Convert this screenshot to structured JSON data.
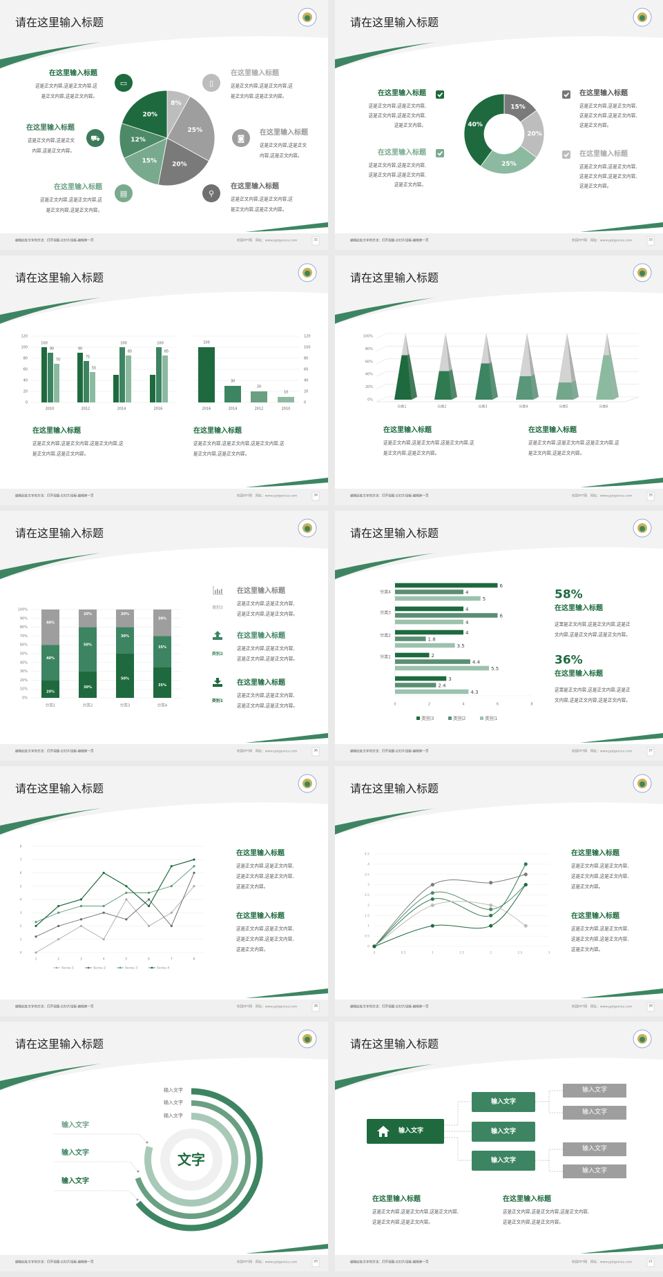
{
  "common": {
    "slide_title": "请在这里输入标题",
    "footer_left": "编辑此处文字的方法：打开视图-幻灯片母版-编辑第一页",
    "footer_site": "校园PPT网",
    "footer_url": "网址：www.pptgenius.com",
    "heading": "在这里输入标题"
  },
  "colors": {
    "dark_green": "#1e6a3e",
    "green": "#3d8562",
    "light_green": "#8cbaa1",
    "gray": "#9e9e9e",
    "light_gray": "#bdbdbd",
    "dark_gray": "#707070"
  },
  "slides": [
    {
      "page": "32",
      "items": [
        {
          "heading": "在这里输入标题",
          "icon": "monitor-icon",
          "body": [
            "这是正文内容,这是正文内容,这",
            "是正文内容,这是正文内容。"
          ]
        },
        {
          "heading": "在这里输入标题",
          "icon": "car-icon",
          "body": [
            "这是正文内容,这是正文",
            "内容,这是正文内容。"
          ]
        },
        {
          "heading": "在这里输入标题",
          "icon": "book-icon",
          "body": [
            "这是正文内容,这是正文内容,这",
            "是正文内容,这是正文内容。"
          ]
        },
        {
          "heading": "在这里输入标题",
          "icon": "phone-icon",
          "body": [
            "这是正文内容,这是正文内容,这",
            "是正文内容,这是正文内容。"
          ]
        },
        {
          "heading": "在这里输入标题",
          "icon": "binoculars-icon",
          "body": [
            "这是正文内容,这是正文",
            "内容,这是正文内容。"
          ]
        },
        {
          "heading": "在这里输入标题",
          "icon": "bicycle-icon",
          "body": [
            "这是正文内容,这是正文内容,这",
            "是正文内容,这是正文内容。"
          ]
        }
      ]
    },
    {
      "page": "33",
      "items": [
        {
          "heading": "在这里输入标题",
          "icon": "checkbox-icon",
          "body": [
            "这是正文内容,这是正文内容,",
            "这是正文内容,这是正文内容,",
            "这是正文内容。"
          ]
        },
        {
          "heading": "在这里输入标题",
          "icon": "checkbox-icon",
          "body": [
            "这是正文内容,这是正文内容,",
            "这是正文内容,这是正文内容,",
            "这是正文内容。"
          ]
        },
        {
          "heading": "在这里输入标题",
          "icon": "checkbox-icon",
          "body": [
            "这是正文内容,这是正文内容,",
            "这是正文内容,这是正文内容,",
            "这是正文内容。"
          ]
        },
        {
          "heading": "在这里输入标题",
          "icon": "checkbox-icon",
          "body": [
            "这是正文内容,这是正文内容,",
            "这是正文内容,这是正文内容,",
            "这是正文内容。"
          ]
        }
      ]
    },
    {
      "page": "34",
      "items": [
        {
          "heading": "在这里输入标题",
          "body": [
            "这是正文内容,这是正文内容,这是正文内容,这",
            "是正文内容,这是正文内容。"
          ]
        },
        {
          "heading": "在这里输入标题",
          "body": [
            "这是正文内容,这是正文内容,这是正文内容,这",
            "是正文内容,这是正文内容。"
          ]
        }
      ]
    },
    {
      "page": "35",
      "items": [
        {
          "heading": "在这里输入标题",
          "body": [
            "这是正文内容,这是正文内容,这是正文内容,这",
            "是正文内容,这是正文内容。"
          ]
        },
        {
          "heading": "在这里输入标题",
          "body": [
            "这是正文内容,这是正文内容,这是正文内容,这",
            "是正文内容,这是正文内容。"
          ]
        }
      ]
    },
    {
      "page": "36",
      "items": [
        {
          "heading": "在这里输入标题",
          "label": "类别3",
          "icon": "bar-chart-icon",
          "body": [
            "这是正文内容,这是正文内容,",
            "这是正文内容,这是正文内容。"
          ]
        },
        {
          "heading": "在这里输入标题",
          "label": "类别2",
          "icon": "upload-icon",
          "body": [
            "这是正文内容,这是正文内容,",
            "这是正文内容,这是正文内容。"
          ]
        },
        {
          "heading": "在这里输入标题",
          "label": "类别1",
          "icon": "download-icon",
          "body": [
            "这是正文内容,这是正文内容,",
            "这是正文内容,这是正文内容。"
          ]
        }
      ]
    },
    {
      "page": "37",
      "items": [
        {
          "stat": "58%",
          "heading": "在这里输入标题",
          "body": [
            "这里是正文内容,这是正文内容,这是正",
            "文内容,这是正文内容,这是正文内容。"
          ]
        },
        {
          "stat": "36%",
          "heading": "在这里输入标题",
          "body": [
            "这里是正文内容,这是正文内容,这是正",
            "文内容,这是正文内容,这是正文内容。"
          ]
        }
      ]
    },
    {
      "page": "38",
      "items": [
        {
          "heading": "在这里输入标题",
          "body": [
            "这是正文内容,这是正文内容,",
            "这是正文内容,这是正文内容,",
            "这是正文内容。"
          ]
        },
        {
          "heading": "在这里输入标题",
          "body": [
            "这是正文内容,这是正文内容,",
            "这是正文内容,这是正文内容,",
            "这是正文内容。"
          ]
        }
      ]
    },
    {
      "page": "39",
      "items": [
        {
          "heading": "在这里输入标题",
          "body": [
            "这是正文内容,这是正文内容,",
            "这是正文内容,这是正文内容,",
            "这是正文内容。"
          ]
        },
        {
          "heading": "在这里输入标题",
          "body": [
            "这是正文内容,这是正文内容,",
            "这是正文内容,这是正文内容,",
            "这是正文内容。"
          ]
        }
      ]
    },
    {
      "page": "20",
      "center": "文字",
      "ring_labels": [
        "输入文字",
        "输入文字",
        "输入文字"
      ],
      "left_labels": [
        "输入文字",
        "输入文字",
        "输入文字"
      ]
    },
    {
      "page": "21",
      "root": "输入文字",
      "root_icon": "home-icon",
      "mid": [
        "输入文字",
        "输入文字",
        "输入文字"
      ],
      "leaves": [
        "输入文字",
        "输入文字",
        "输入文字",
        "输入文字"
      ],
      "items": [
        {
          "heading": "在这里输入标题",
          "body": [
            "这是正文内容,这是正文内容,这是正文内容,",
            "这是正文内容,这是正文内容。"
          ]
        },
        {
          "heading": "在这里输入标题",
          "body": [
            "这是正文内容,这是正文内容,这是正文内容,",
            "这是正文内容,这是正文内容。"
          ]
        }
      ]
    }
  ],
  "chart_data": [
    {
      "type": "pie",
      "labels": [
        "8%",
        "25%",
        "20%",
        "15%",
        "12%",
        "20%"
      ],
      "values": [
        8,
        25,
        20,
        15,
        12,
        20
      ],
      "colors": [
        "#bdbdbd",
        "#9e9e9e",
        "#7a7a7a",
        "#7aaa8e",
        "#4d8a67",
        "#1e6a3e"
      ]
    },
    {
      "type": "pie",
      "donut": true,
      "labels": [
        "15%",
        "20%",
        "25%",
        "40%"
      ],
      "values": [
        15,
        20,
        25,
        40
      ],
      "colors": [
        "#7a7a7a",
        "#bdbdbd",
        "#8cbaa1",
        "#1e6a3e"
      ]
    },
    {
      "type": "bar",
      "categories": [
        "2010",
        "2012",
        "2014",
        "2016"
      ],
      "ylim": [
        0,
        120
      ],
      "yticks": [
        "0",
        "20",
        "40",
        "60",
        "80",
        "100",
        "120"
      ],
      "series": [
        {
          "values": [
            100,
            90,
            50,
            50
          ],
          "labels": [
            "100",
            "90",
            "",
            ""
          ]
        },
        {
          "values": [
            90,
            75,
            100,
            100
          ],
          "labels": [
            "90",
            "75",
            "100",
            "100"
          ]
        },
        {
          "values": [
            70,
            55,
            85,
            85
          ],
          "labels": [
            "70",
            "55",
            "85",
            "85"
          ]
        }
      ]
    },
    {
      "type": "bar",
      "categories": [
        "2016",
        "2014",
        "2012",
        "2010"
      ],
      "ylim": [
        0,
        120
      ],
      "yticks": [
        "0",
        "20",
        "40",
        "60",
        "80",
        "100",
        "120"
      ],
      "values": [
        100,
        30,
        20,
        10
      ],
      "labels": [
        "100",
        "30",
        "20",
        "10"
      ]
    },
    {
      "type": "bar",
      "style": "3d-pyramid",
      "categories": [
        "分类1",
        "分类2",
        "分类3",
        "分类4",
        "分类5",
        "分类6"
      ],
      "ylim": [
        0,
        100
      ],
      "yticks": [
        "0%",
        "20%",
        "40%",
        "60%",
        "80%",
        "100%"
      ],
      "values": [
        70,
        45,
        57,
        37,
        27,
        70
      ]
    },
    {
      "type": "bar",
      "stacked": true,
      "categories": [
        "分类1",
        "分类2",
        "分类3",
        "分类4"
      ],
      "ylim": [
        0,
        100
      ],
      "yticks": [
        "0%",
        "10%",
        "20%",
        "30%",
        "40%",
        "50%",
        "60%",
        "70%",
        "80%",
        "90%",
        "100%"
      ],
      "series": [
        {
          "name": "类别1",
          "values": [
            20,
            30,
            50,
            35
          ],
          "labels": [
            "20%",
            "30%",
            "50%",
            "35%"
          ]
        },
        {
          "name": "类别2",
          "values": [
            40,
            50,
            30,
            35
          ],
          "labels": [
            "40%",
            "50%",
            "30%",
            "35%"
          ]
        },
        {
          "name": "类别3",
          "values": [
            40,
            20,
            20,
            30
          ],
          "labels": [
            "40%",
            "20%",
            "20%",
            "30%"
          ]
        }
      ]
    },
    {
      "type": "bar",
      "orientation": "horizontal",
      "categories": [
        "分类4",
        "分类3",
        "分类2",
        "分类1",
        ""
      ],
      "xlim": [
        0,
        8
      ],
      "xticks": [
        "0",
        "2",
        "4",
        "6",
        "8"
      ],
      "legend": "bottom",
      "series": [
        {
          "name": "类别3",
          "values": [
            6,
            4,
            4,
            2,
            3
          ],
          "labels": [
            "6",
            "4",
            "4",
            "2",
            "3"
          ]
        },
        {
          "name": "类别2",
          "values": [
            4,
            6,
            1.8,
            4.4,
            2.4
          ],
          "labels": [
            "4",
            "6",
            "1.8",
            "4.4",
            "2.4"
          ]
        },
        {
          "name": "类别1",
          "values": [
            5,
            4,
            3.5,
            5.5,
            4.3
          ],
          "labels": [
            "5",
            "4",
            "3.5",
            "5.5",
            "4.3"
          ]
        }
      ]
    },
    {
      "type": "line",
      "x": [
        1,
        2,
        3,
        4,
        5,
        6,
        7,
        8
      ],
      "xticks": [
        "1",
        "2",
        "3",
        "4",
        "5",
        "6",
        "7",
        "8"
      ],
      "ylim": [
        0,
        8
      ],
      "yticks": [
        "0",
        "1",
        "2",
        "3",
        "4",
        "5",
        "6",
        "7",
        "8"
      ],
      "legend": "bottom",
      "series": [
        {
          "name": "Series 1",
          "values": [
            0,
            1,
            2,
            1,
            4,
            2,
            3,
            5
          ]
        },
        {
          "name": "Series 2",
          "values": [
            1.2,
            2,
            2.5,
            3,
            2.5,
            4,
            2,
            6
          ]
        },
        {
          "name": "Series 3",
          "values": [
            2.3,
            3,
            3.5,
            3.5,
            4.5,
            4.5,
            5,
            6.5
          ]
        },
        {
          "name": "Series 4",
          "values": [
            2,
            3.5,
            4,
            6,
            5,
            3.5,
            6.5,
            7
          ]
        }
      ]
    },
    {
      "type": "scatter",
      "smooth": true,
      "x": [
        0,
        1,
        2,
        2.6
      ],
      "xlim": [
        0,
        3
      ],
      "xticks": [
        "0",
        "0.5",
        "1",
        "1.5",
        "2",
        "2.5",
        "3"
      ],
      "ylim": [
        0,
        4.5
      ],
      "yticks": [
        "0",
        "0.5",
        "1",
        "1.5",
        "2",
        "2.5",
        "3",
        "3.5",
        "4",
        "4.5"
      ],
      "series": [
        {
          "values": [
            0,
            3,
            3.1,
            3.5
          ]
        },
        {
          "values": [
            0,
            2.6,
            1.8,
            3
          ]
        },
        {
          "values": [
            0,
            2.3,
            1.5,
            4
          ]
        },
        {
          "values": [
            0,
            2,
            2,
            1
          ]
        },
        {
          "values": [
            0,
            1,
            1,
            3
          ]
        }
      ]
    }
  ]
}
